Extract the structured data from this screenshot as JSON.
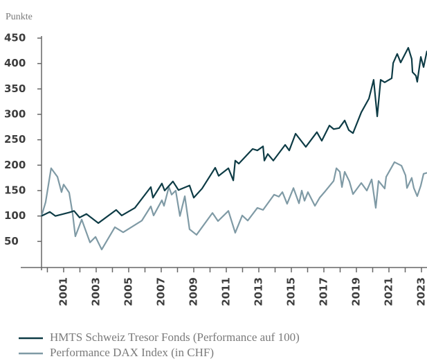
{
  "chart_data": {
    "type": "line",
    "y_axis_label": "Punkte",
    "ylim": [
      0,
      450
    ],
    "yticks": [
      50,
      100,
      150,
      200,
      250,
      300,
      350,
      400,
      450
    ],
    "xlim": [
      1999.64,
      2023.34
    ],
    "xticks": [
      2001,
      2003,
      2005,
      2007,
      2009,
      2011,
      2013,
      2015,
      2017,
      2019,
      2021,
      2023
    ],
    "xminorticks": [
      2000,
      2001,
      2002,
      2003,
      2004,
      2005,
      2006,
      2007,
      2008,
      2009,
      2010,
      2011,
      2012,
      2013,
      2014,
      2015,
      2016,
      2017,
      2018,
      2019,
      2020,
      2021,
      2022,
      2023
    ],
    "grid": false,
    "series": [
      {
        "name": "HMTS Schweiz Tresor Fonds (Performance auf 100)",
        "color": "#0d3b45",
        "x": [
          1999.64,
          2000.15,
          2000.49,
          2001.34,
          2001.64,
          2001.98,
          2002.4,
          2003.13,
          2004.23,
          2004.57,
          2005.38,
          2006.36,
          2006.49,
          2007.04,
          2007.21,
          2007.72,
          2008.06,
          2008.74,
          2009.0,
          2009.51,
          2010.32,
          2010.53,
          2011.13,
          2011.43,
          2011.55,
          2011.77,
          2012.62,
          2012.91,
          2013.26,
          2013.34,
          2013.55,
          2013.89,
          2014.62,
          2014.87,
          2015.26,
          2015.89,
          2016.57,
          2016.87,
          2017.34,
          2017.6,
          2017.94,
          2018.28,
          2018.53,
          2018.79,
          2019.3,
          2019.77,
          2020.06,
          2020.28,
          2020.49,
          2020.74,
          2021.17,
          2021.26,
          2021.51,
          2021.72,
          2022.19,
          2022.4,
          2022.45,
          2022.66,
          2022.74,
          2022.96,
          2023.13,
          2023.34
        ],
        "values": [
          100,
          108,
          100,
          107,
          110,
          97,
          104,
          86,
          112,
          101,
          116,
          157,
          136,
          164,
          150,
          168,
          151,
          160,
          136,
          154,
          195,
          179,
          194,
          170,
          209,
          203,
          232,
          229,
          237,
          209,
          222,
          209,
          240,
          229,
          262,
          236,
          265,
          248,
          278,
          271,
          273,
          288,
          269,
          263,
          304,
          331,
          368,
          296,
          368,
          363,
          371,
          401,
          419,
          402,
          431,
          409,
          383,
          376,
          364,
          413,
          393,
          425
        ]
      },
      {
        "name": "Performance DAX Index (in CHF)",
        "color": "#7f9aa5",
        "x": [
          1999.64,
          1999.89,
          2000.23,
          2000.62,
          2000.87,
          2001.0,
          2001.34,
          2001.55,
          2001.72,
          2002.11,
          2002.62,
          2002.96,
          2003.34,
          2004.15,
          2004.66,
          2005.81,
          2006.36,
          2006.53,
          2007.04,
          2007.17,
          2007.47,
          2007.64,
          2007.89,
          2008.15,
          2008.45,
          2008.74,
          2009.17,
          2010.15,
          2010.49,
          2011.13,
          2011.55,
          2011.98,
          2012.32,
          2012.91,
          2013.26,
          2013.94,
          2014.23,
          2014.45,
          2014.74,
          2015.13,
          2015.47,
          2015.64,
          2015.81,
          2016.02,
          2016.45,
          2016.74,
          2017.09,
          2017.6,
          2017.77,
          2017.98,
          2018.11,
          2018.28,
          2018.57,
          2018.79,
          2019.3,
          2019.64,
          2019.94,
          2020.19,
          2020.36,
          2020.74,
          2020.83,
          2021.34,
          2021.77,
          2022.02,
          2022.11,
          2022.4,
          2022.53,
          2022.74,
          2022.96,
          2023.13,
          2023.34
        ],
        "values": [
          100,
          127,
          194,
          177,
          147,
          162,
          146,
          105,
          60,
          93,
          48,
          59,
          34,
          78,
          68,
          91,
          119,
          101,
          131,
          120,
          157,
          142,
          150,
          100,
          139,
          74,
          63,
          106,
          90,
          110,
          67,
          101,
          91,
          116,
          112,
          142,
          138,
          147,
          124,
          155,
          125,
          150,
          130,
          147,
          120,
          136,
          149,
          169,
          194,
          187,
          157,
          187,
          168,
          143,
          165,
          150,
          172,
          116,
          169,
          154,
          177,
          206,
          199,
          180,
          155,
          175,
          155,
          139,
          160,
          183,
          185
        ]
      }
    ]
  }
}
